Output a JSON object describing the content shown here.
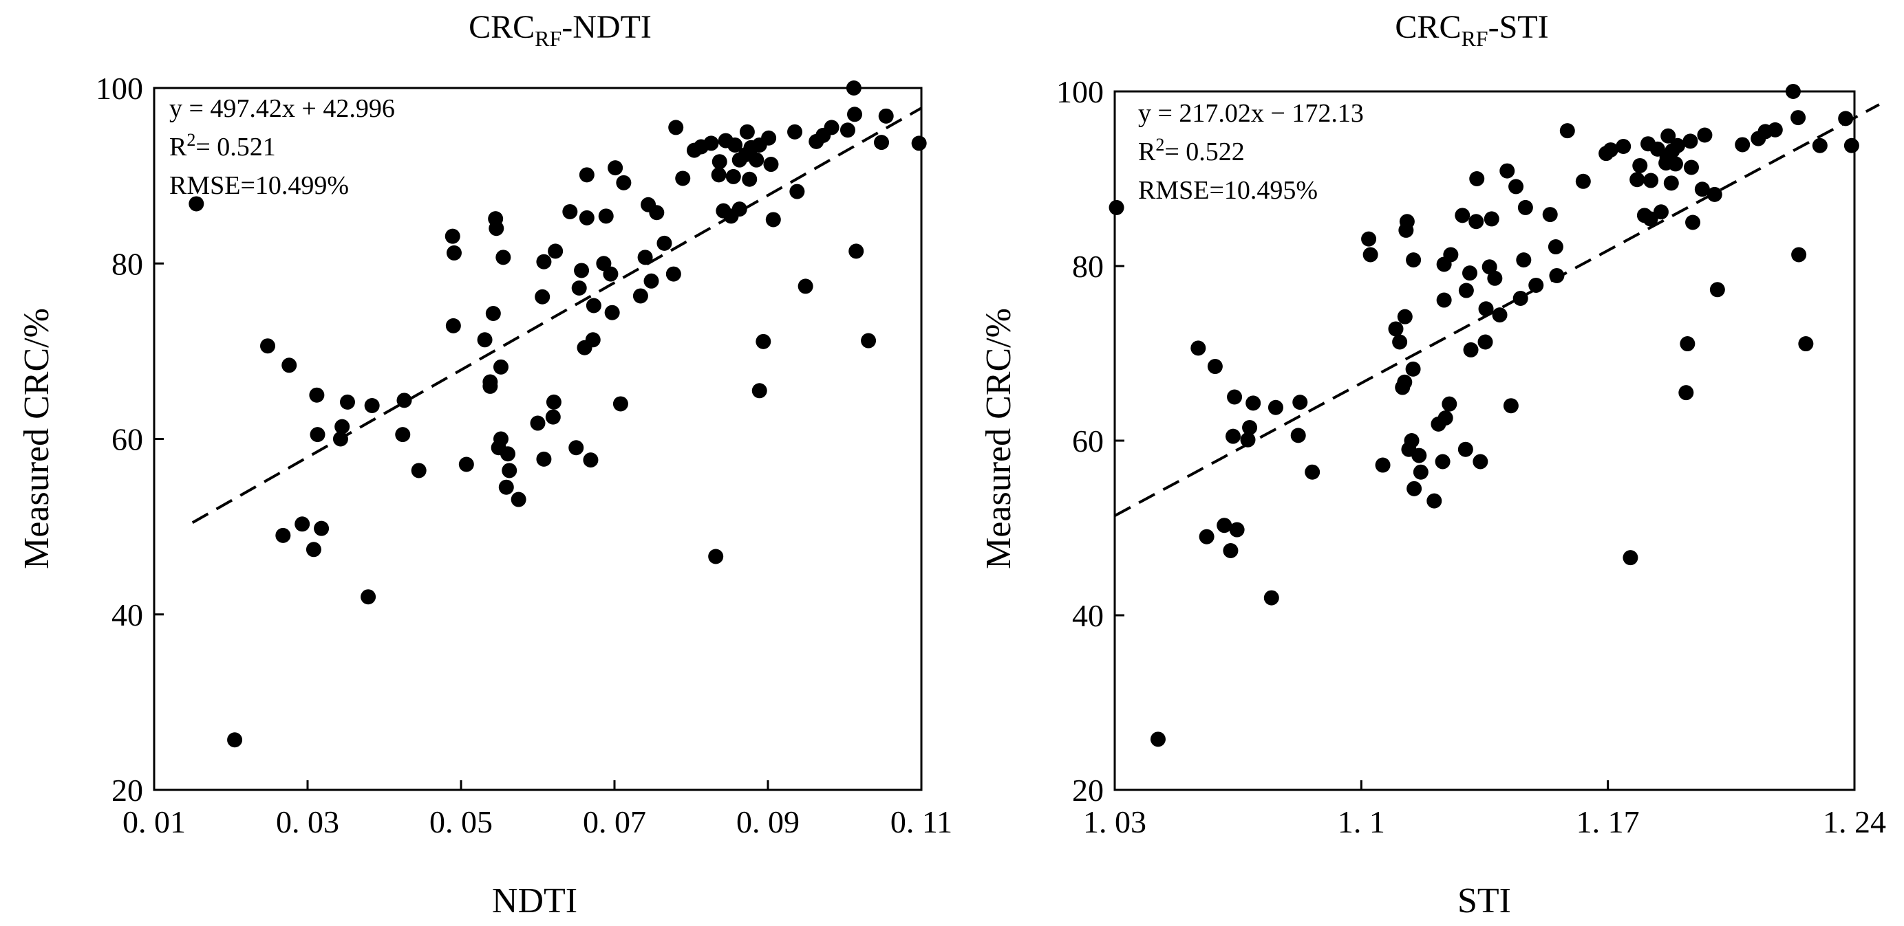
{
  "chart_data": [
    {
      "type": "scatter",
      "title_main": "CRC",
      "title_sub": "RF",
      "title_tail": "-NDTI",
      "xlabel": "NDTI",
      "ylabel": "Measured CRC/%",
      "xlim": [
        0.01,
        0.11
      ],
      "ylim": [
        20,
        100
      ],
      "xticks": [
        0.01,
        0.03,
        0.05,
        0.07,
        0.09,
        0.11
      ],
      "xtick_labels": [
        "0. 01",
        "0. 03",
        "0. 05",
        "0. 07",
        "0. 09",
        "0. 11"
      ],
      "yticks": [
        20,
        40,
        60,
        80,
        100
      ],
      "ytick_labels": [
        "20",
        "40",
        "60",
        "80",
        "100"
      ],
      "annotation": {
        "equation": "y  = 497.42x + 42.996",
        "r2_prefix": "R",
        "r2_sup": "2",
        "r2_value": "= 0.521",
        "rmse": "RMSE=10.499%"
      },
      "fit": {
        "slope": 497.42,
        "intercept": 42.996,
        "x_range": [
          0.015,
          0.11
        ]
      },
      "x": [
        0.0155,
        0.0205,
        0.0248,
        0.0268,
        0.0276,
        0.0293,
        0.0308,
        0.0313,
        0.0312,
        0.0318,
        0.0343,
        0.0345,
        0.0352,
        0.0379,
        0.0384,
        0.0424,
        0.0426,
        0.0445,
        0.0489,
        0.0491,
        0.049,
        0.0507,
        0.0531,
        0.0538,
        0.0538,
        0.0542,
        0.0546,
        0.0545,
        0.0549,
        0.0552,
        0.0552,
        0.0555,
        0.0559,
        0.0561,
        0.0563,
        0.0575,
        0.06,
        0.0606,
        0.0608,
        0.0608,
        0.062,
        0.0621,
        0.0623,
        0.0642,
        0.065,
        0.0654,
        0.0657,
        0.0661,
        0.0664,
        0.0664,
        0.0669,
        0.0672,
        0.0673,
        0.0686,
        0.0689,
        0.0695,
        0.0697,
        0.0701,
        0.0708,
        0.0712,
        0.0734,
        0.074,
        0.0744,
        0.0748,
        0.0755,
        0.0765,
        0.0777,
        0.078,
        0.0789,
        0.0804,
        0.0813,
        0.0826,
        0.0832,
        0.0836,
        0.0837,
        0.0842,
        0.0845,
        0.0852,
        0.0855,
        0.0857,
        0.0863,
        0.0863,
        0.0871,
        0.0873,
        0.0876,
        0.0878,
        0.0885,
        0.0889,
        0.0889,
        0.0894,
        0.0901,
        0.0904,
        0.0907,
        0.0935,
        0.0938,
        0.0949,
        0.0963,
        0.0972,
        0.0983,
        0.1004,
        0.1012,
        0.1013,
        0.1015,
        0.1031,
        0.1048,
        0.1054,
        0.1097
      ],
      "y": [
        86.8,
        25.7,
        70.6,
        49.0,
        68.4,
        50.3,
        47.4,
        60.5,
        65.0,
        49.8,
        60.0,
        61.4,
        64.2,
        42.0,
        63.8,
        60.5,
        64.4,
        56.4,
        83.1,
        81.2,
        72.9,
        57.1,
        71.3,
        66.0,
        66.5,
        74.3,
        84.0,
        85.1,
        59.0,
        60.0,
        68.2,
        80.7,
        54.5,
        58.3,
        56.4,
        53.1,
        61.8,
        76.2,
        80.2,
        57.7,
        62.5,
        64.2,
        81.4,
        85.9,
        59.0,
        77.2,
        79.2,
        70.4,
        85.2,
        90.1,
        57.6,
        71.3,
        75.2,
        80.0,
        85.4,
        78.8,
        74.4,
        90.9,
        64.0,
        89.2,
        76.3,
        80.7,
        86.7,
        78.0,
        85.8,
        82.3,
        78.8,
        95.5,
        89.7,
        92.9,
        93.3,
        93.7,
        46.6,
        90.1,
        91.6,
        86.0,
        94.0,
        85.4,
        89.9,
        93.5,
        86.2,
        91.8,
        92.4,
        95.0,
        89.6,
        93.2,
        91.8,
        93.5,
        65.5,
        71.1,
        94.3,
        91.3,
        85.0,
        95.0,
        88.2,
        77.4,
        93.9,
        94.6,
        95.5,
        95.2,
        100.0,
        97.0,
        81.4,
        71.2,
        93.8,
        96.8,
        93.7
      ]
    },
    {
      "type": "scatter",
      "title_main": "CRC",
      "title_sub": "RF",
      "title_tail": "-STI",
      "xlabel": "STI",
      "ylabel": "Measured CRC/%",
      "xlim": [
        1.03,
        1.24
      ],
      "ylim": [
        20,
        100
      ],
      "xticks": [
        1.03,
        1.1,
        1.17,
        1.24
      ],
      "xtick_labels": [
        "1. 03",
        "1. 1",
        "1. 17",
        "1. 24"
      ],
      "yticks": [
        20,
        40,
        60,
        80,
        100
      ],
      "ytick_labels": [
        "20",
        "40",
        "60",
        "80",
        "100"
      ],
      "annotation": {
        "equation": "y  = 217.02x − 172.13",
        "r2_prefix": "R",
        "r2_sup": "2",
        "r2_value": "= 0.522",
        "rmse": "RMSE=10.495%"
      },
      "fit": {
        "slope": 217.02,
        "intercept": -172.13,
        "x_range": [
          1.03,
          1.247
        ]
      },
      "x": [
        1.0305,
        1.0423,
        1.0537,
        1.0561,
        1.0585,
        1.0611,
        1.0629,
        1.0636,
        1.064,
        1.0647,
        1.0678,
        1.0683,
        1.0693,
        1.0745,
        1.0757,
        1.0821,
        1.0826,
        1.0861,
        1.1021,
        1.1026,
        1.1061,
        1.1098,
        1.1109,
        1.1117,
        1.1123,
        1.1124,
        1.1127,
        1.113,
        1.1135,
        1.1143,
        1.1147,
        1.1148,
        1.115,
        1.1164,
        1.1169,
        1.1207,
        1.1219,
        1.1231,
        1.1235,
        1.1235,
        1.1239,
        1.125,
        1.1254,
        1.1287,
        1.1296,
        1.1298,
        1.1308,
        1.1311,
        1.1326,
        1.1328,
        1.1338,
        1.1352,
        1.1354,
        1.1364,
        1.137,
        1.1379,
        1.1393,
        1.1414,
        1.1425,
        1.1439,
        1.1452,
        1.1461,
        1.1466,
        1.1496,
        1.1536,
        1.1552,
        1.1555,
        1.1585,
        1.163,
        1.1695,
        1.1708,
        1.1744,
        1.1764,
        1.1783,
        1.1791,
        1.1804,
        1.1814,
        1.1821,
        1.1822,
        1.1841,
        1.1851,
        1.1865,
        1.1868,
        1.1871,
        1.188,
        1.1883,
        1.1892,
        1.1898,
        1.1922,
        1.1926,
        1.1934,
        1.1937,
        1.1941,
        1.1968,
        1.1975,
        1.2003,
        1.2011,
        1.2082,
        1.2127,
        1.2147,
        1.2175,
        1.2226,
        1.224,
        1.2242,
        1.2262,
        1.2302,
        1.2375,
        1.2392
      ],
      "y": [
        86.7,
        25.8,
        70.6,
        49.0,
        68.5,
        50.3,
        47.4,
        60.5,
        65.0,
        49.8,
        60.1,
        61.5,
        64.3,
        42.0,
        63.8,
        60.6,
        64.4,
        56.4,
        83.1,
        81.3,
        57.2,
        72.8,
        71.3,
        66.1,
        66.7,
        74.2,
        84.1,
        85.1,
        59.0,
        60.0,
        68.2,
        80.7,
        54.5,
        58.3,
        56.4,
        53.1,
        61.9,
        57.6,
        76.1,
        80.2,
        62.6,
        64.2,
        81.3,
        85.8,
        59.0,
        77.2,
        79.2,
        70.4,
        85.1,
        90.0,
        57.6,
        71.3,
        75.1,
        79.9,
        85.4,
        78.6,
        74.4,
        90.9,
        64.0,
        89.1,
        76.3,
        80.7,
        86.7,
        77.8,
        85.9,
        82.2,
        78.9,
        95.5,
        89.7,
        92.9,
        93.3,
        93.7,
        46.6,
        89.9,
        91.5,
        85.8,
        94.0,
        85.4,
        89.8,
        93.4,
        86.2,
        91.8,
        92.4,
        94.9,
        89.5,
        93.2,
        91.7,
        93.8,
        65.5,
        71.1,
        94.3,
        91.3,
        85.0,
        88.8,
        95.0,
        88.2,
        77.3,
        93.9,
        94.6,
        95.4,
        95.6,
        100.0,
        97.0,
        81.3,
        71.1,
        93.8,
        96.9,
        93.8
      ]
    }
  ]
}
